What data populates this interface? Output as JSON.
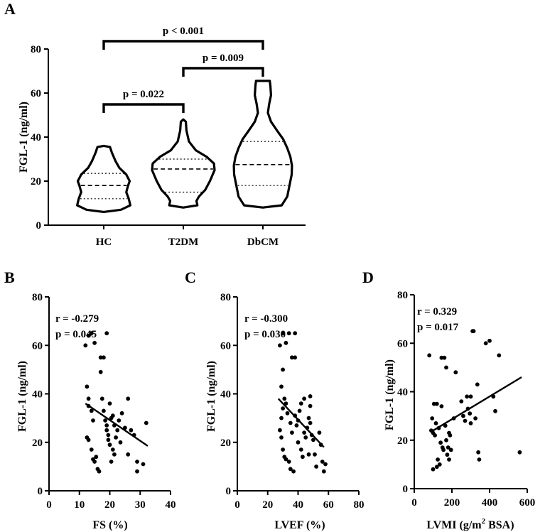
{
  "chart_data": [
    {
      "panel": "A",
      "type": "violin",
      "ylabel": "FGL-1 (ng/ml)",
      "ylim": [
        0,
        80
      ],
      "yticks": [
        0,
        20,
        40,
        60,
        80
      ],
      "categories": [
        "HC",
        "T2DM",
        "DbCM"
      ],
      "groups": [
        {
          "name": "HC",
          "min": 6,
          "max": 36,
          "median": 18,
          "q1": 12,
          "q3": 23.5,
          "profile": [
            [
              6,
              0.0
            ],
            [
              7,
              0.55
            ],
            [
              9,
              0.85
            ],
            [
              12,
              0.8
            ],
            [
              15,
              0.72
            ],
            [
              18,
              0.78
            ],
            [
              20,
              0.83
            ],
            [
              23,
              0.72
            ],
            [
              26,
              0.5
            ],
            [
              29,
              0.38
            ],
            [
              33,
              0.26
            ],
            [
              35.5,
              0.2
            ],
            [
              36,
              0.0
            ]
          ]
        },
        {
          "name": "T2DM",
          "min": 8,
          "max": 48,
          "median": 25.5,
          "q1": 15,
          "q3": 30,
          "profile": [
            [
              8,
              0.0
            ],
            [
              9,
              0.45
            ],
            [
              11,
              0.42
            ],
            [
              13,
              0.5
            ],
            [
              16,
              0.7
            ],
            [
              20,
              0.85
            ],
            [
              25,
              1.0
            ],
            [
              28,
              0.98
            ],
            [
              31,
              0.75
            ],
            [
              34,
              0.4
            ],
            [
              38,
              0.18
            ],
            [
              43,
              0.1
            ],
            [
              47,
              0.08
            ],
            [
              48,
              0.0
            ]
          ]
        },
        {
          "name": "DbCM",
          "min": 8,
          "max": 65.5,
          "median": 27.5,
          "q1": 18,
          "q3": 38,
          "profile": [
            [
              8,
              0.0
            ],
            [
              9,
              0.6
            ],
            [
              13,
              0.78
            ],
            [
              18,
              0.85
            ],
            [
              23,
              0.92
            ],
            [
              27,
              0.93
            ],
            [
              31,
              0.88
            ],
            [
              35,
              0.78
            ],
            [
              39,
              0.65
            ],
            [
              43,
              0.45
            ],
            [
              47,
              0.26
            ],
            [
              51,
              0.16
            ],
            [
              55,
              0.2
            ],
            [
              59,
              0.26
            ],
            [
              63,
              0.24
            ],
            [
              65.5,
              0.22
            ],
            [
              65.5,
              0.0
            ]
          ]
        }
      ],
      "comparisons": [
        {
          "from": "HC",
          "to": "DbCM",
          "label": "p < 0.001",
          "y": 82
        },
        {
          "from": "T2DM",
          "to": "DbCM",
          "label": "p = 0.009",
          "y": 70
        },
        {
          "from": "HC",
          "to": "T2DM",
          "label": "p = 0.022",
          "y": 54
        }
      ]
    },
    {
      "panel": "B",
      "type": "scatter",
      "xlabel": "FS (%)",
      "ylabel": "FGL-1 (ng/ml)",
      "xlim": [
        0,
        40
      ],
      "ylim": [
        0,
        80
      ],
      "xticks": [
        0,
        10,
        20,
        30,
        40
      ],
      "yticks": [
        0,
        20,
        40,
        60,
        80
      ],
      "annotation_r": "r = -0.279",
      "annotation_p": "p = 0.045",
      "trendline": {
        "x": [
          12,
          32.5
        ],
        "y": [
          36,
          18.5
        ]
      },
      "points": [
        [
          12,
          60
        ],
        [
          13,
          64
        ],
        [
          14,
          65
        ],
        [
          15,
          61
        ],
        [
          12.5,
          43
        ],
        [
          13,
          38
        ],
        [
          13,
          35
        ],
        [
          14,
          33
        ],
        [
          14.5,
          29
        ],
        [
          12.5,
          22
        ],
        [
          13,
          21
        ],
        [
          14,
          17
        ],
        [
          14.5,
          13
        ],
        [
          15,
          12
        ],
        [
          15.5,
          14
        ],
        [
          16,
          9
        ],
        [
          16.5,
          8
        ],
        [
          17,
          49
        ],
        [
          17,
          55
        ],
        [
          18,
          55
        ],
        [
          19,
          65
        ],
        [
          17.5,
          38
        ],
        [
          18,
          33
        ],
        [
          18.5,
          29
        ],
        [
          19,
          27
        ],
        [
          19,
          25
        ],
        [
          19.5,
          23
        ],
        [
          19.5,
          21
        ],
        [
          20,
          19
        ],
        [
          20,
          36
        ],
        [
          20.5,
          30
        ],
        [
          21,
          31
        ],
        [
          21.5,
          27
        ],
        [
          21,
          17
        ],
        [
          21.5,
          15
        ],
        [
          20.5,
          12
        ],
        [
          22,
          22
        ],
        [
          22.5,
          25
        ],
        [
          23,
          29
        ],
        [
          24,
          32
        ],
        [
          25,
          26
        ],
        [
          23.5,
          20
        ],
        [
          26,
          38
        ],
        [
          27,
          25
        ],
        [
          26,
          15
        ],
        [
          28,
          23
        ],
        [
          29,
          12
        ],
        [
          29,
          8
        ],
        [
          31,
          11
        ],
        [
          32,
          28
        ]
      ]
    },
    {
      "panel": "C",
      "type": "scatter",
      "xlabel": "LVEF (%)",
      "ylabel": "FGL-1 (ng/ml)",
      "xlim": [
        0,
        80
      ],
      "ylim": [
        0,
        80
      ],
      "xticks": [
        0,
        20,
        40,
        60,
        80
      ],
      "yticks": [
        0,
        20,
        40,
        60,
        80
      ],
      "annotation_r": "r = -0.300",
      "annotation_p": "p = 0.030",
      "trendline": {
        "x": [
          27,
          57
        ],
        "y": [
          38,
          18
        ]
      },
      "points": [
        [
          28,
          60
        ],
        [
          30,
          65
        ],
        [
          32,
          61
        ],
        [
          34,
          65
        ],
        [
          36,
          55
        ],
        [
          38,
          55
        ],
        [
          30,
          50
        ],
        [
          29,
          43
        ],
        [
          31,
          38
        ],
        [
          32,
          36
        ],
        [
          30,
          34
        ],
        [
          29,
          30
        ],
        [
          28,
          25
        ],
        [
          29,
          22
        ],
        [
          30,
          17
        ],
        [
          31,
          14
        ],
        [
          32,
          13
        ],
        [
          34,
          12
        ],
        [
          35,
          9
        ],
        [
          37,
          8
        ],
        [
          33,
          32
        ],
        [
          35,
          28
        ],
        [
          36,
          24
        ],
        [
          38,
          31
        ],
        [
          39,
          27
        ],
        [
          40,
          29
        ],
        [
          41,
          33
        ],
        [
          42,
          36
        ],
        [
          40,
          20
        ],
        [
          42,
          17
        ],
        [
          43,
          14
        ],
        [
          44,
          24
        ],
        [
          45,
          22
        ],
        [
          46,
          26
        ],
        [
          47,
          30
        ],
        [
          48,
          35
        ],
        [
          44,
          38
        ],
        [
          48,
          28
        ],
        [
          49,
          23
        ],
        [
          47,
          15
        ],
        [
          50,
          21
        ],
        [
          51,
          15
        ],
        [
          52,
          10
        ],
        [
          54,
          24
        ],
        [
          55,
          19
        ],
        [
          56,
          12
        ],
        [
          57,
          8
        ],
        [
          58,
          11
        ],
        [
          48,
          39
        ],
        [
          38,
          65
        ]
      ]
    },
    {
      "panel": "D",
      "type": "scatter",
      "xlabel_main": "LVMI (g/m",
      "xlabel_sup": "2",
      "xlabel_tail": " BSA)",
      "ylabel": "FGL-1 (ng/ml)",
      "xlim": [
        0,
        600
      ],
      "ylim": [
        0,
        80
      ],
      "xticks": [
        0,
        200,
        400,
        600
      ],
      "yticks": [
        0,
        20,
        40,
        60,
        80
      ],
      "annotation_r": "r = 0.329",
      "annotation_p": "p = 0.017",
      "trendline": {
        "x": [
          90,
          570
        ],
        "y": [
          23.5,
          46
        ]
      },
      "points": [
        [
          80,
          55
        ],
        [
          95,
          29
        ],
        [
          100,
          23
        ],
        [
          105,
          35
        ],
        [
          110,
          22
        ],
        [
          115,
          27
        ],
        [
          120,
          35
        ],
        [
          125,
          12
        ],
        [
          130,
          25
        ],
        [
          135,
          10
        ],
        [
          140,
          19
        ],
        [
          145,
          34
        ],
        [
          150,
          17
        ],
        [
          155,
          16
        ],
        [
          145,
          54
        ],
        [
          160,
          54
        ],
        [
          165,
          26
        ],
        [
          170,
          50
        ],
        [
          170,
          20
        ],
        [
          175,
          14
        ],
        [
          180,
          17
        ],
        [
          185,
          23
        ],
        [
          185,
          12
        ],
        [
          190,
          22
        ],
        [
          195,
          16
        ],
        [
          210,
          29
        ],
        [
          220,
          48
        ],
        [
          250,
          36
        ],
        [
          260,
          30
        ],
        [
          270,
          28
        ],
        [
          280,
          38
        ],
        [
          285,
          33
        ],
        [
          295,
          31
        ],
        [
          300,
          38
        ],
        [
          300,
          27
        ],
        [
          310,
          65
        ],
        [
          315,
          65
        ],
        [
          325,
          29
        ],
        [
          335,
          43
        ],
        [
          340,
          15
        ],
        [
          345,
          12
        ],
        [
          380,
          60
        ],
        [
          400,
          61
        ],
        [
          420,
          38
        ],
        [
          430,
          32
        ],
        [
          450,
          55
        ],
        [
          560,
          15
        ],
        [
          100,
          8
        ],
        [
          120,
          9
        ],
        [
          90,
          24
        ]
      ]
    }
  ]
}
